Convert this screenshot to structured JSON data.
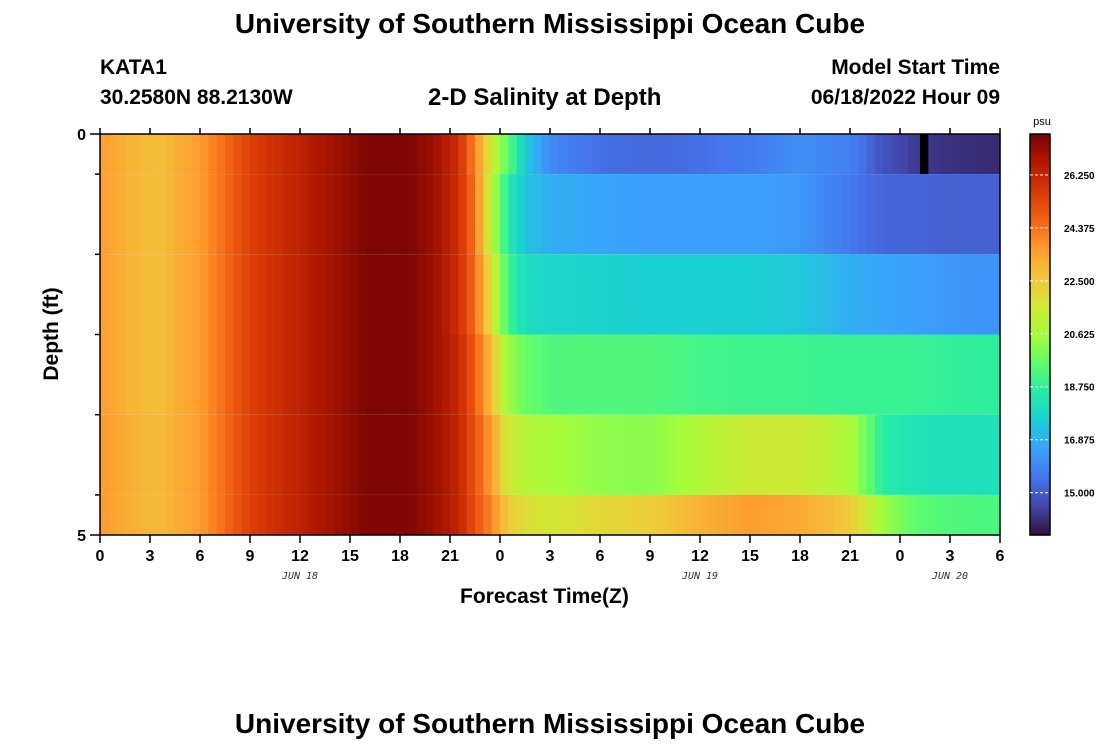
{
  "header": {
    "title": "University of Southern Mississippi Ocean Cube",
    "station": "KATA1",
    "latlon": "30.2580N  88.2130W",
    "model_start_label": "Model Start Time",
    "model_start_value": "06/18/2022 Hour 09"
  },
  "footer": {
    "title": "University of Southern Mississippi Ocean Cube"
  },
  "chart_data": {
    "type": "heatmap",
    "title": "2-D Salinity at Depth",
    "xlabel": "Forecast Time(Z)",
    "ylabel": "Depth (ft)",
    "x_tick_labels": [
      "0",
      "3",
      "6",
      "9",
      "12",
      "15",
      "18",
      "21",
      "0",
      "3",
      "6",
      "9",
      "12",
      "15",
      "18",
      "21",
      "0",
      "3",
      "6"
    ],
    "x_date_labels": [
      {
        "label": "JUN 18",
        "hour": 12
      },
      {
        "label": "JUN 19",
        "hour": 36
      },
      {
        "label": "JUN 20",
        "hour": 51
      }
    ],
    "x_range_hours": [
      0,
      54
    ],
    "y_tick_labels": [
      "0",
      "5"
    ],
    "y_range_ft": [
      0,
      5
    ],
    "depth_layers_ft": [
      [
        0,
        0.5
      ],
      [
        0.5,
        1.5
      ],
      [
        1.5,
        2.5
      ],
      [
        2.5,
        3.5
      ],
      [
        3.5,
        4.5
      ],
      [
        4.5,
        5
      ]
    ],
    "colorbar": {
      "unit": "psu",
      "min": 13.5,
      "max": 27.7,
      "tick_labels": [
        "26.250",
        "24.375",
        "22.500",
        "20.625",
        "18.750",
        "16.875",
        "15.000"
      ],
      "tick_values": [
        26.25,
        24.375,
        22.5,
        20.625,
        18.75,
        16.875,
        15.0
      ],
      "colors": [
        "#30123b",
        "#4145ab",
        "#4675ed",
        "#39a2fc",
        "#1bcfd4",
        "#24eca6",
        "#61fc6c",
        "#a4fc3b",
        "#d1e834",
        "#f3c63a",
        "#fe9b2d",
        "#f36315",
        "#d93806",
        "#b11901",
        "#7a0402"
      ]
    },
    "salinity_psu_by_hour": [
      {
        "hour": 0,
        "layers": [
          23.6,
          23.6,
          23.6,
          23.6,
          23.7,
          23.7
        ]
      },
      {
        "hour": 1.5,
        "layers": [
          23.1,
          23.1,
          23.1,
          23.1,
          23.2,
          23.2
        ]
      },
      {
        "hour": 3.5,
        "layers": [
          22.8,
          22.8,
          22.8,
          22.8,
          22.9,
          22.9
        ]
      },
      {
        "hour": 6,
        "layers": [
          23.6,
          23.6,
          23.6,
          23.6,
          23.6,
          23.6
        ]
      },
      {
        "hour": 9,
        "layers": [
          25.5,
          25.5,
          25.5,
          25.5,
          25.5,
          25.5
        ]
      },
      {
        "hour": 12,
        "layers": [
          26.4,
          26.4,
          26.4,
          26.4,
          26.4,
          26.4
        ]
      },
      {
        "hour": 14,
        "layers": [
          27.0,
          27.0,
          27.0,
          27.0,
          27.0,
          27.0
        ]
      },
      {
        "hour": 16,
        "layers": [
          27.6,
          27.6,
          27.6,
          27.6,
          27.6,
          27.6
        ]
      },
      {
        "hour": 18.5,
        "layers": [
          27.6,
          27.6,
          27.6,
          27.6,
          27.6,
          27.6
        ]
      },
      {
        "hour": 20,
        "layers": [
          27.1,
          27.1,
          27.1,
          27.1,
          27.1,
          27.1
        ]
      },
      {
        "hour": 21.5,
        "layers": [
          26.0,
          26.0,
          26.0,
          26.2,
          26.3,
          26.3
        ]
      },
      {
        "hour": 22.5,
        "layers": [
          24.0,
          24.3,
          24.5,
          24.8,
          25.0,
          25.1
        ]
      },
      {
        "hour": 23.5,
        "layers": [
          21.5,
          21.0,
          21.8,
          22.8,
          23.5,
          24.0
        ]
      },
      {
        "hour": 24.5,
        "layers": [
          19.5,
          18.5,
          19.0,
          20.5,
          21.5,
          22.5
        ]
      },
      {
        "hour": 25.5,
        "layers": [
          17.5,
          17.3,
          18.0,
          19.7,
          21.0,
          22.0
        ]
      },
      {
        "hour": 27,
        "layers": [
          16.0,
          16.8,
          17.8,
          19.3,
          20.7,
          21.6
        ]
      },
      {
        "hour": 30,
        "layers": [
          15.4,
          16.6,
          17.7,
          19.3,
          20.3,
          22.1
        ]
      },
      {
        "hour": 33,
        "layers": [
          15.3,
          16.5,
          17.6,
          19.3,
          20.2,
          22.4
        ]
      },
      {
        "hour": 36,
        "layers": [
          15.4,
          16.5,
          17.6,
          19.1,
          20.9,
          23.1
        ]
      },
      {
        "hour": 39,
        "layers": [
          15.7,
          16.5,
          17.6,
          19.0,
          21.5,
          23.6
        ]
      },
      {
        "hour": 42,
        "layers": [
          16.1,
          16.3,
          17.4,
          19.0,
          21.5,
          23.3
        ]
      },
      {
        "hour": 45,
        "layers": [
          15.8,
          15.6,
          16.8,
          18.9,
          20.8,
          22.5
        ]
      },
      {
        "hour": 47,
        "layers": [
          14.8,
          15.2,
          16.6,
          18.9,
          18.6,
          20.5
        ]
      },
      {
        "hour": 49,
        "layers": [
          14.3,
          15.2,
          16.5,
          18.9,
          18.2,
          19.5
        ]
      },
      {
        "hour": 51,
        "layers": [
          14.1,
          15.1,
          16.3,
          18.8,
          18.1,
          19.3
        ]
      },
      {
        "hour": 54,
        "layers": [
          14.0,
          15.1,
          16.2,
          18.7,
          18.1,
          19.2
        ]
      }
    ],
    "missing_cells": [
      {
        "hour_start": 49.2,
        "hour_end": 49.7,
        "layer": 0
      }
    ]
  }
}
